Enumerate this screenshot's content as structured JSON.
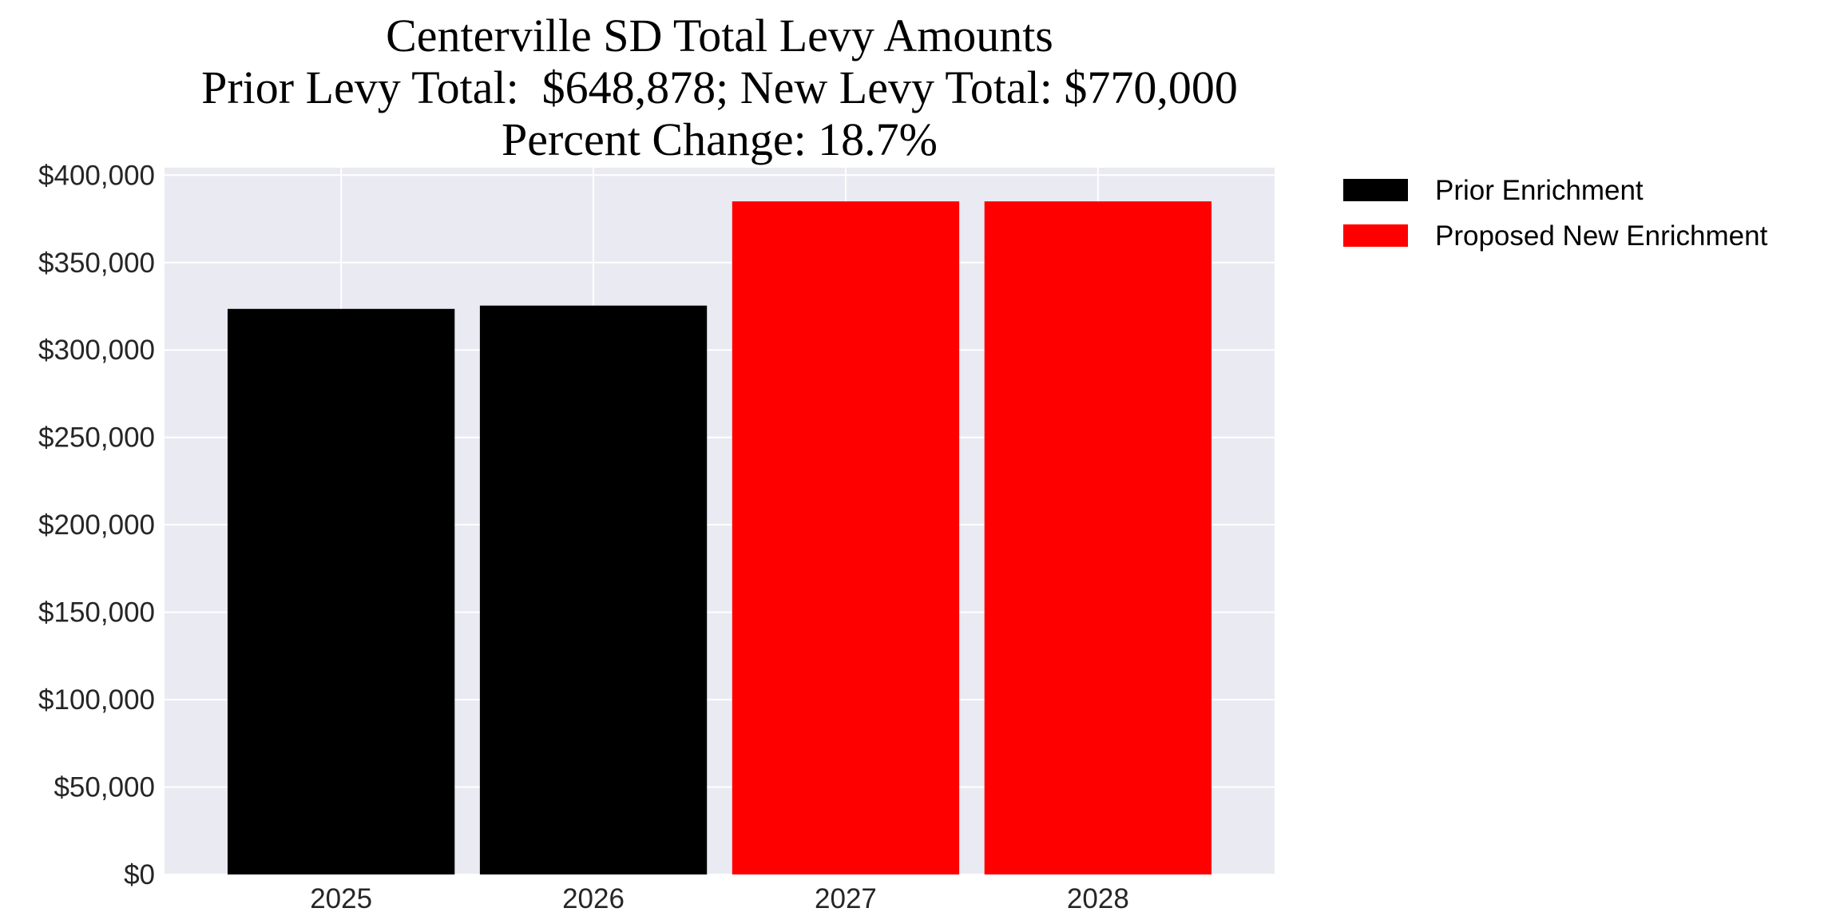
{
  "chart_data": {
    "type": "bar",
    "title": "Centerville SD Total Levy Amounts",
    "subtitle_lines": [
      "Prior Levy Total:  $648,878; New Levy Total: $770,000",
      "Percent Change: 18.7%"
    ],
    "xlabel": "",
    "ylabel": "",
    "categories": [
      "2025",
      "2026",
      "2027",
      "2028"
    ],
    "values": [
      323500,
      325378,
      385000,
      385000
    ],
    "bar_series": [
      "Prior Enrichment",
      "Prior Enrichment",
      "Proposed New Enrichment",
      "Proposed New Enrichment"
    ],
    "ylim": [
      0,
      404250
    ],
    "yticks": [
      0,
      50000,
      100000,
      150000,
      200000,
      250000,
      300000,
      350000,
      400000
    ],
    "ytick_labels": [
      "$0",
      "$50,000",
      "$100,000",
      "$150,000",
      "$200,000",
      "$250,000",
      "$300,000",
      "$350,000",
      "$400,000"
    ],
    "grid": true,
    "background": "#EAEAF2",
    "legend_position": "outside-right-top",
    "legend": [
      {
        "name": "Prior Enrichment",
        "color": "#000000"
      },
      {
        "name": "Proposed New Enrichment",
        "color": "#FF0000"
      }
    ]
  }
}
